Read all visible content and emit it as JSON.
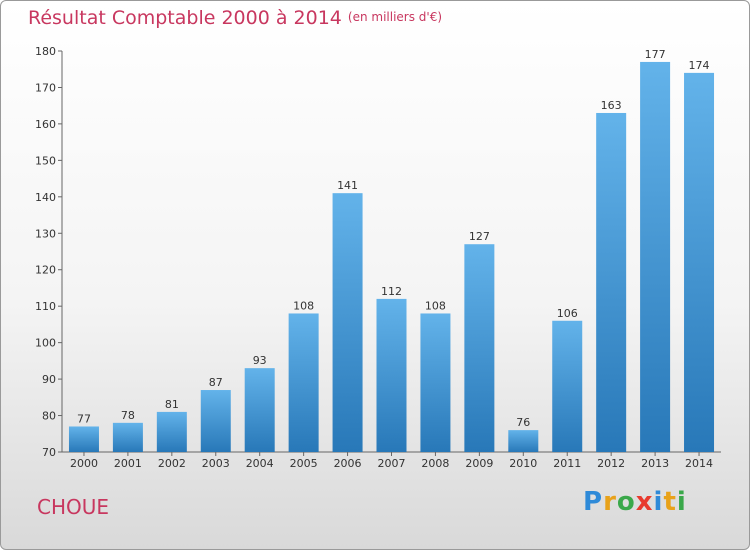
{
  "chart_data": {
    "type": "bar",
    "title": "Résultat Comptable 2000 à 2014",
    "subtitle": "(en milliers d'€)",
    "categories": [
      "2000",
      "2001",
      "2002",
      "2003",
      "2004",
      "2005",
      "2006",
      "2007",
      "2008",
      "2009",
      "2010",
      "2011",
      "2012",
      "2013",
      "2014"
    ],
    "values": [
      77,
      78,
      81,
      87,
      93,
      108,
      141,
      112,
      108,
      127,
      76,
      106,
      163,
      177,
      174
    ],
    "ylim": [
      70,
      180
    ],
    "yticks": [
      70,
      80,
      90,
      100,
      110,
      120,
      130,
      140,
      150,
      160,
      170,
      180
    ],
    "grid": false,
    "bar_color_top": "#63b3ea",
    "bar_color_bottom": "#2878b8"
  },
  "footer": {
    "place": "CHOUE",
    "logo_letters": [
      "P",
      "r",
      "o",
      "x",
      "i",
      "t",
      "i"
    ],
    "logo_colors": [
      "#2e8ad8",
      "#e8a21a",
      "#3aa84a",
      "#e83a2e",
      "#2e8ad8",
      "#e8a21a",
      "#3aa84a"
    ]
  }
}
